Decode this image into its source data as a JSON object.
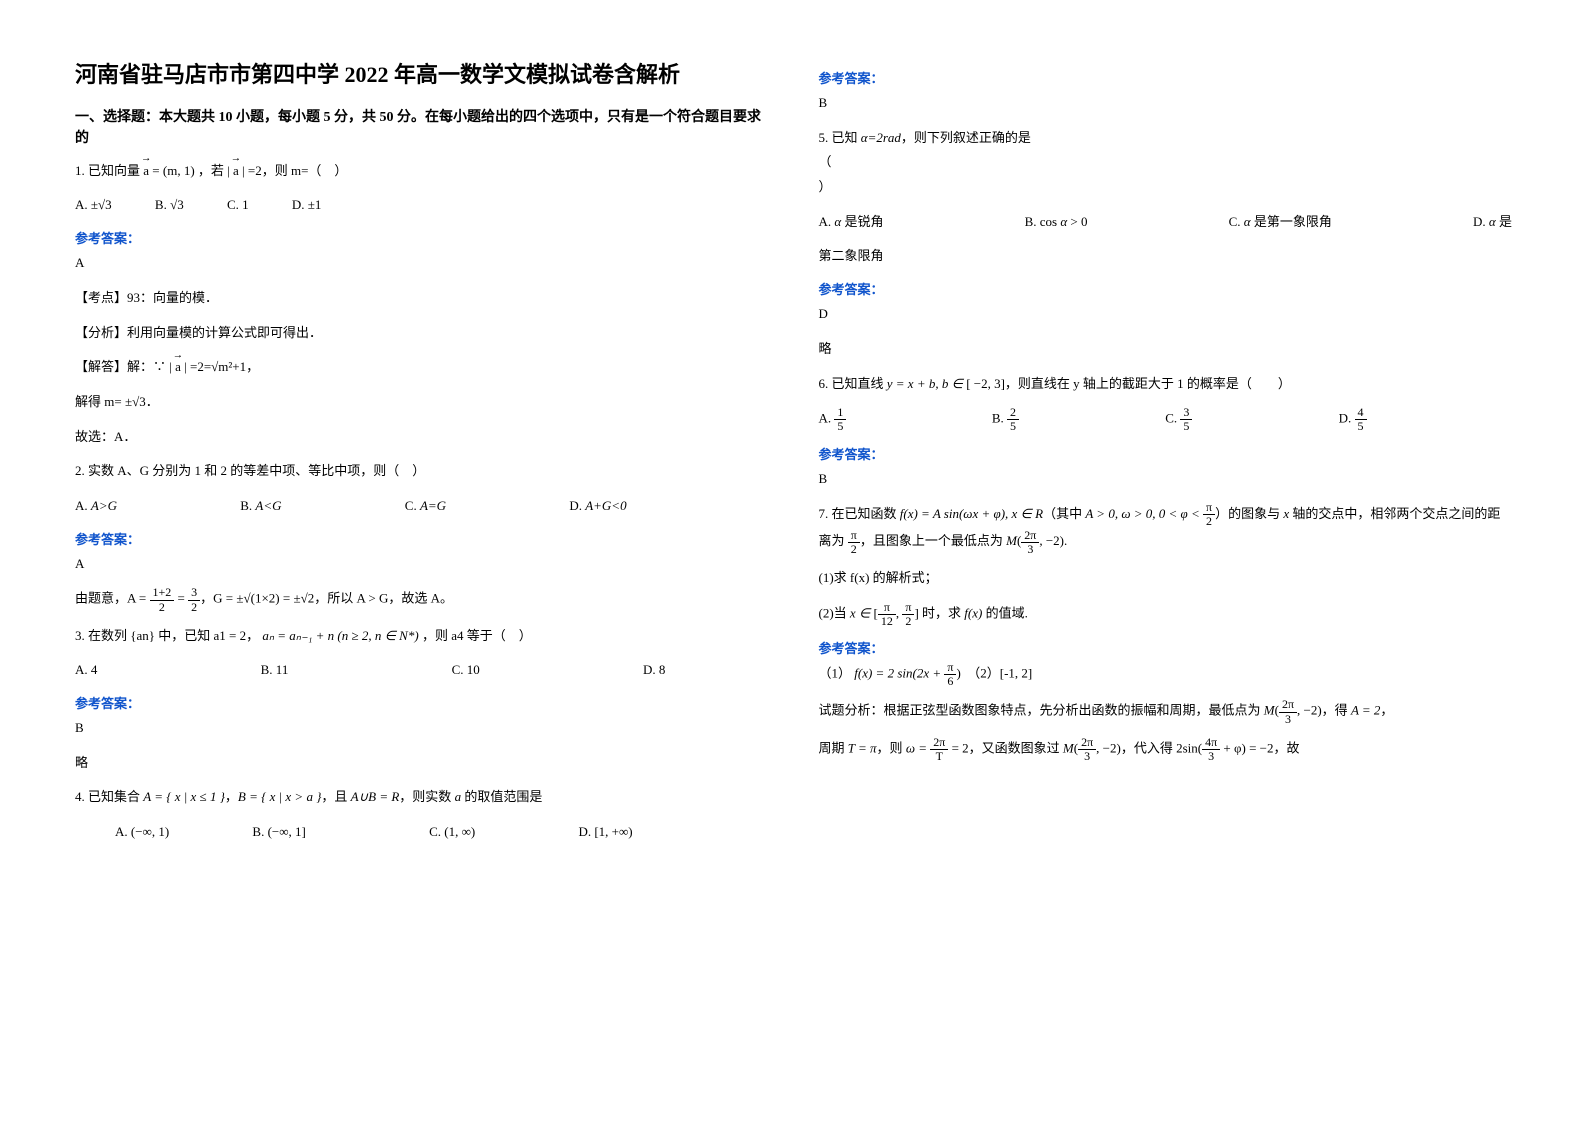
{
  "title": "河南省驻马店市市第四中学 2022 年高一数学文模拟试卷含解析",
  "section1_head": "一、选择题：本大题共 10 小题，每小题 5 分，共 50 分。在每小题给出的四个选项中，只有是一个符合题目要求的",
  "q1": {
    "stem": "1. 已知向量 a = (m, 1) ，若 | a | =2，则 m=（　）",
    "optA": "A. ±√3",
    "optB": "B. √3",
    "optC": "C. 1",
    "optD": "D. ±1",
    "ans_label": "参考答案：",
    "ans_letter": "A",
    "point": "【考点】93：向量的模．",
    "analysis": "【分析】利用向量模的计算公式即可得出．",
    "solve1": "【解答】解：∵ | a | =2=√(m²+1)，",
    "solve2": "解得 m= ±√3．",
    "solve3": "故选：A．"
  },
  "q2": {
    "stem": "2. 实数 A、G 分别为 1 和 2 的等差中项、等比中项，则（　）",
    "optA": "A. A>G",
    "optB": "B. A<G",
    "optC": "C. A=G",
    "optD": "D. A+G<0",
    "ans_label": "参考答案：",
    "ans_letter": "A",
    "explain": "由题意，A = (1+2)/2 = 3/2，G = ±√(1×2) = ±√2，所以 A > G，故选 A。"
  },
  "q3": {
    "stem_pre": "3. 在数列 {an} 中，已知 a1 = 2，",
    "formula": "aₙ = aₙ₋₁ + n (n ≥ 2, n ∈ N*)",
    "stem_post": "，则 a4 等于（　）",
    "optA": "A. 4",
    "optB": "B. 11",
    "optC": "C. 10",
    "optD": "D. 8",
    "ans_label": "参考答案：",
    "ans_letter": "B",
    "note": "略"
  },
  "q4": {
    "stem": "4. 已知集合 A = { x | x ≤ 1 }，B = { x | x > a }，且 A∪B = R，则实数 a 的取值范围是",
    "optA": "A. (−∞, 1)",
    "optB": "B. (−∞, 1]",
    "optC": "C. (1, ∞)",
    "optD": "D. [1, +∞)",
    "ans_label": "参考答案：",
    "ans_letter": "B"
  },
  "q5": {
    "stem": "5. 已知 α=2rad，则下列叙述正确的是",
    "filler": "（　）",
    "optA": "A. α 是锐角",
    "optB": "B. cos α > 0",
    "optC": "C. α 是第一象限角",
    "optD": "D. α 是第二象限角",
    "ans_label": "参考答案：",
    "ans_letter": "D",
    "note": "略"
  },
  "q6": {
    "stem": "6. 已知直线 y = x + b, b ∈ [ −2, 3]，则直线在 y 轴上的截距大于 1 的概率是（　）",
    "optA_pre": "A.",
    "optA_num": "1",
    "optA_den": "5",
    "optB_pre": "B.",
    "optB_num": "2",
    "optB_den": "5",
    "optC_pre": "C.",
    "optC_num": "3",
    "optC_den": "5",
    "optD_pre": "D.",
    "optD_num": "4",
    "optD_den": "5",
    "ans_label": "参考答案：",
    "ans_letter": "B"
  },
  "q7": {
    "stem1": "7. 在已知函数 f(x) = A sin(ωx + φ), x ∈ R（其中 A > 0, ω > 0, 0 < φ < π/2）的图象与 x 轴的交点中，相邻两个交点之间的距离为 π/2，且图象上一个最低点为 M(2π/3, −2).",
    "sub1": "(1)求 f(x) 的解析式；",
    "sub2": "(2)当 x ∈ [π/12, π/2] 时，求 f(x) 的值域.",
    "ans_label": "参考答案：",
    "ans1": "（1） f(x) = 2 sin(2x + π/6)　（2）[-1, 2]",
    "explain1": "试题分析：根据正弦型函数图象特点，先分析出函数的振幅和周期，最低点为 M(2π/3, −2)，得 A = 2，",
    "explain2": "周期 T = π，则 ω = 2π/T = 2，又函数图象过 M(2π/3, −2)，代入得 2sin(4π/3 + φ) = −2，故"
  },
  "colors": {
    "text": "#000000",
    "link": "#1155cc",
    "bg": "#ffffff"
  }
}
